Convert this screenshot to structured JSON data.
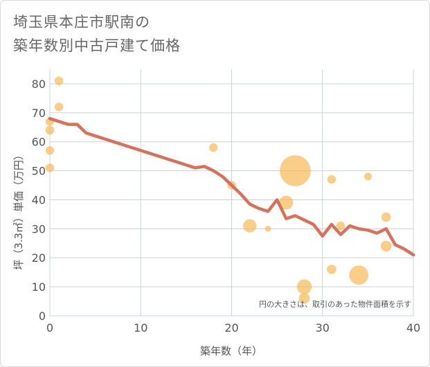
{
  "chart_data": {
    "type": "scatter",
    "title_lines": [
      "埼玉県本庄市駅南の",
      "築年数別中古戸建て価格"
    ],
    "xlabel": "築年数（年）",
    "ylabel": "坪（3.3㎡）単価（万円）",
    "xlim": [
      0,
      40
    ],
    "ylim": [
      0,
      85
    ],
    "xticks": [
      0,
      10,
      20,
      30,
      40
    ],
    "yticks": [
      0,
      10,
      20,
      30,
      40,
      50,
      60,
      70,
      80
    ],
    "grid": true,
    "note": "円の大きさは、取引のあった物件面積を示す",
    "colors": {
      "bubble": "#f5b955",
      "line": "#d9705a",
      "grid": "#c8d3de"
    },
    "bubbles": [
      {
        "x": 0,
        "y": 67,
        "size": 1
      },
      {
        "x": 0,
        "y": 64,
        "size": 1
      },
      {
        "x": 0,
        "y": 57,
        "size": 1
      },
      {
        "x": 0,
        "y": 51,
        "size": 1
      },
      {
        "x": 1,
        "y": 81,
        "size": 1
      },
      {
        "x": 1,
        "y": 72,
        "size": 1
      },
      {
        "x": 18,
        "y": 58,
        "size": 1
      },
      {
        "x": 20,
        "y": 45,
        "size": 1
      },
      {
        "x": 22,
        "y": 31,
        "size": 2.4
      },
      {
        "x": 24,
        "y": 30,
        "size": 0.5
      },
      {
        "x": 26,
        "y": 39,
        "size": 2.6
      },
      {
        "x": 27,
        "y": 50,
        "size": 13
      },
      {
        "x": 28,
        "y": 10,
        "size": 3
      },
      {
        "x": 28,
        "y": 6,
        "size": 1.6
      },
      {
        "x": 31,
        "y": 47,
        "size": 1
      },
      {
        "x": 31,
        "y": 16,
        "size": 1.2
      },
      {
        "x": 32,
        "y": 31,
        "size": 1
      },
      {
        "x": 34,
        "y": 14,
        "size": 5
      },
      {
        "x": 35,
        "y": 48,
        "size": 0.8
      },
      {
        "x": 37,
        "y": 34,
        "size": 1.2
      },
      {
        "x": 37,
        "y": 24,
        "size": 1.6
      }
    ],
    "trend": {
      "x": [
        0,
        1,
        2,
        3,
        4,
        5,
        6,
        7,
        8,
        9,
        10,
        11,
        12,
        13,
        14,
        15,
        16,
        17,
        18,
        19,
        20,
        21,
        22,
        23,
        24,
        25,
        26,
        27,
        28,
        29,
        30,
        31,
        32,
        33,
        34,
        35,
        36,
        37,
        38,
        39,
        40
      ],
      "y": [
        68,
        67,
        66,
        66,
        63,
        62,
        61,
        60,
        59,
        58,
        57,
        56,
        55,
        54,
        53,
        52,
        51,
        51.5,
        50,
        48,
        45,
        42,
        38.5,
        37,
        36,
        40,
        33.5,
        34.5,
        33,
        31.5,
        27.5,
        31.5,
        28,
        31,
        30,
        29.5,
        28.5,
        30,
        24.5,
        23,
        21
      ]
    }
  }
}
